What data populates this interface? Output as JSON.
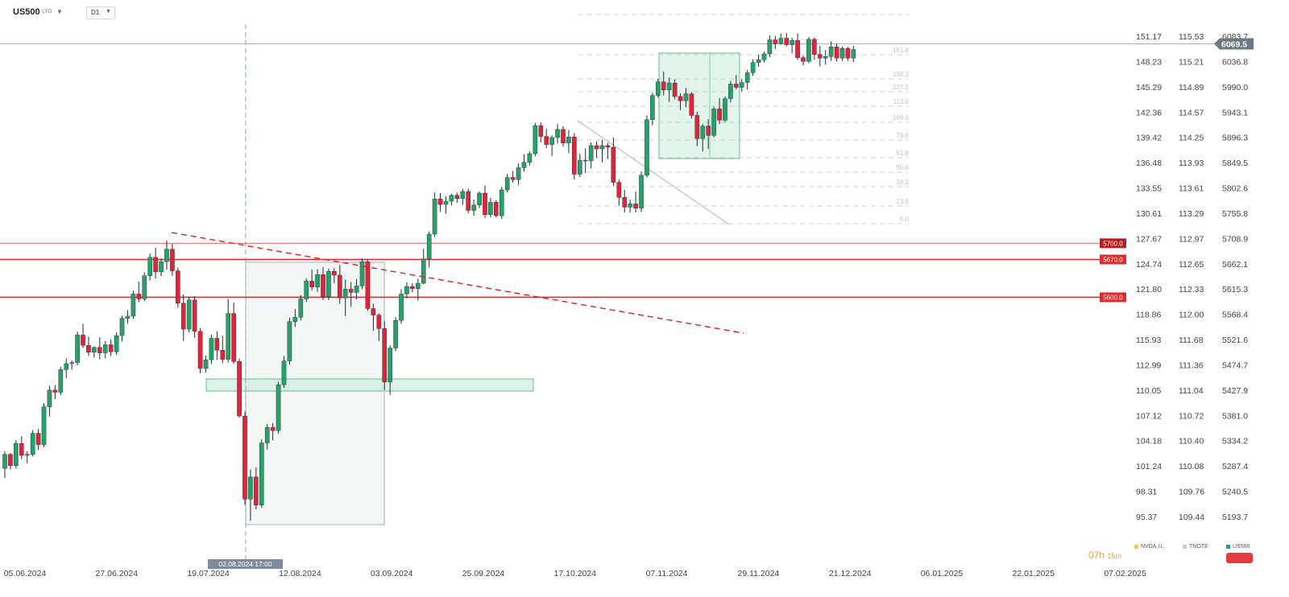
{
  "header": {
    "symbol": "US500",
    "symbol_type": "CFD",
    "timeframe": "D1"
  },
  "colors": {
    "up": "#26a269",
    "down": "#e0243a",
    "grid": "#d0d0d0",
    "level": "#e32a2a",
    "zone_green": "#cfeee0"
  },
  "icons": [
    "chevron-down-icon"
  ],
  "chart_data": {
    "type": "candlestick",
    "x_axis": {
      "type": "date",
      "tick_labels": [
        "05.06.2024",
        "27.06.2024",
        "19.07.2024",
        "12.08.2024",
        "03.09.2024",
        "25.09.2024",
        "17.10.2024",
        "07.11.2024",
        "29.11.2024",
        "21.12.2024",
        "06.01.2025",
        "22.01.2025",
        "07.02.2025"
      ],
      "crosshair_label": "02.08.2024 17:00"
    },
    "y_axes": {
      "nvda_ticks": [
        151.17,
        148.23,
        145.29,
        142.36,
        139.42,
        136.48,
        133.55,
        130.61,
        127.67,
        124.74,
        121.8,
        118.86,
        115.93,
        112.99,
        110.05,
        107.12,
        104.18,
        101.24,
        98.31,
        95.37
      ],
      "tnote_ticks": [
        115.53,
        115.21,
        114.89,
        114.57,
        114.25,
        113.93,
        113.61,
        113.29,
        112.97,
        112.65,
        112.33,
        112.0,
        111.68,
        111.36,
        111.04,
        110.72,
        110.4,
        110.08,
        109.76,
        109.44
      ],
      "us500_ticks": [
        6083.7,
        6036.8,
        5990.0,
        5943.1,
        5896.3,
        5849.5,
        5802.6,
        5755.8,
        5708.9,
        5662.1,
        5615.3,
        5568.4,
        5521.6,
        5474.7,
        5427.9,
        5381.0,
        5334.2,
        5287.4,
        5240.5,
        5193.7
      ],
      "us500_range": [
        5193.7,
        6083.7
      ],
      "last_price": "6069.5"
    },
    "levels": [
      {
        "value": 5700.0,
        "label": "5700.0"
      },
      {
        "value": 5670.0,
        "label": "5670.0"
      },
      {
        "value": 5600.0,
        "label": "5600.0"
      }
    ],
    "fibonacci": {
      "levels": [
        "161.8",
        "138.2",
        "127.2",
        "113.0",
        "100.0",
        "78.6",
        "61.8",
        "50.0",
        "38.2",
        "23.6",
        "0.0"
      ],
      "price_high": 6084,
      "price_low": 5751
    },
    "candles": [
      [
        5283,
        5315,
        5265,
        5309
      ],
      [
        5309,
        5311,
        5281,
        5288
      ],
      [
        5288,
        5335,
        5283,
        5329
      ],
      [
        5329,
        5342,
        5300,
        5307
      ],
      [
        5307,
        5315,
        5292,
        5309
      ],
      [
        5309,
        5354,
        5305,
        5348
      ],
      [
        5348,
        5356,
        5317,
        5327
      ],
      [
        5327,
        5404,
        5322,
        5397
      ],
      [
        5397,
        5436,
        5379,
        5428
      ],
      [
        5428,
        5437,
        5411,
        5424
      ],
      [
        5424,
        5471,
        5419,
        5466
      ],
      [
        5466,
        5487,
        5450,
        5477
      ],
      [
        5477,
        5483,
        5466,
        5479
      ],
      [
        5479,
        5536,
        5474,
        5530
      ],
      [
        5530,
        5551,
        5506,
        5511
      ],
      [
        5511,
        5527,
        5491,
        5498
      ],
      [
        5498,
        5509,
        5488,
        5507
      ],
      [
        5507,
        5526,
        5485,
        5497
      ],
      [
        5497,
        5519,
        5487,
        5512
      ],
      [
        5512,
        5522,
        5491,
        5499
      ],
      [
        5499,
        5535,
        5493,
        5529
      ],
      [
        5529,
        5566,
        5518,
        5561
      ],
      [
        5561,
        5576,
        5551,
        5565
      ],
      [
        5565,
        5612,
        5560,
        5606
      ],
      [
        5606,
        5629,
        5591,
        5597
      ],
      [
        5597,
        5646,
        5593,
        5640
      ],
      [
        5640,
        5681,
        5631,
        5674
      ],
      [
        5674,
        5692,
        5635,
        5647
      ],
      [
        5647,
        5672,
        5639,
        5666
      ],
      [
        5666,
        5705,
        5651,
        5689
      ],
      [
        5689,
        5699,
        5640,
        5649
      ],
      [
        5649,
        5655,
        5581,
        5589
      ],
      [
        5589,
        5605,
        5519,
        5541
      ],
      [
        5541,
        5601,
        5535,
        5595
      ],
      [
        5595,
        5602,
        5525,
        5537
      ],
      [
        5537,
        5543,
        5459,
        5468
      ],
      [
        5468,
        5492,
        5461,
        5484
      ],
      [
        5484,
        5531,
        5476,
        5524
      ],
      [
        5524,
        5537,
        5484,
        5502
      ],
      [
        5502,
        5529,
        5478,
        5485
      ],
      [
        5485,
        5597,
        5479,
        5570
      ],
      [
        5570,
        5590,
        5477,
        5481
      ],
      [
        5481,
        5486,
        5377,
        5380
      ],
      [
        5380,
        5388,
        5215,
        5226
      ],
      [
        5226,
        5281,
        5186,
        5267
      ],
      [
        5267,
        5285,
        5207,
        5215
      ],
      [
        5215,
        5337,
        5210,
        5330
      ],
      [
        5330,
        5365,
        5318,
        5359
      ],
      [
        5359,
        5367,
        5335,
        5353
      ],
      [
        5353,
        5443,
        5347,
        5438
      ],
      [
        5438,
        5491,
        5432,
        5482
      ],
      [
        5482,
        5562,
        5475,
        5555
      ],
      [
        5555,
        5578,
        5545,
        5563
      ],
      [
        5563,
        5604,
        5557,
        5597
      ],
      [
        5597,
        5635,
        5591,
        5630
      ],
      [
        5630,
        5651,
        5613,
        5619
      ],
      [
        5619,
        5652,
        5610,
        5642
      ],
      [
        5642,
        5656,
        5595,
        5601
      ],
      [
        5601,
        5653,
        5595,
        5648
      ],
      [
        5648,
        5654,
        5626,
        5641
      ],
      [
        5641,
        5660,
        5588,
        5599
      ],
      [
        5599,
        5633,
        5565,
        5615
      ],
      [
        5615,
        5628,
        5582,
        5609
      ],
      [
        5609,
        5634,
        5596,
        5621
      ],
      [
        5621,
        5672,
        5615,
        5666
      ],
      [
        5666,
        5671,
        5575,
        5579
      ],
      [
        5579,
        5588,
        5538,
        5567
      ],
      [
        5567,
        5570,
        5519,
        5542
      ],
      [
        5542,
        5556,
        5428,
        5443
      ],
      [
        5443,
        5511,
        5419,
        5506
      ],
      [
        5506,
        5563,
        5500,
        5557
      ],
      [
        5557,
        5615,
        5551,
        5606
      ],
      [
        5606,
        5628,
        5598,
        5620
      ],
      [
        5620,
        5626,
        5609,
        5616
      ],
      [
        5616,
        5634,
        5594,
        5626
      ],
      [
        5626,
        5690,
        5624,
        5671
      ],
      [
        5671,
        5722,
        5655,
        5717
      ],
      [
        5717,
        5794,
        5712,
        5782
      ],
      [
        5782,
        5793,
        5758,
        5772
      ],
      [
        5772,
        5787,
        5755,
        5778
      ],
      [
        5778,
        5792,
        5770,
        5789
      ],
      [
        5789,
        5794,
        5775,
        5783
      ],
      [
        5783,
        5801,
        5771,
        5796
      ],
      [
        5796,
        5801,
        5756,
        5761
      ],
      [
        5761,
        5781,
        5751,
        5771
      ],
      [
        5771,
        5796,
        5765,
        5793
      ],
      [
        5793,
        5807,
        5747,
        5753
      ],
      [
        5753,
        5784,
        5748,
        5776
      ],
      [
        5776,
        5780,
        5748,
        5751
      ],
      [
        5751,
        5805,
        5745,
        5799
      ],
      [
        5799,
        5829,
        5794,
        5822
      ],
      [
        5822,
        5834,
        5812,
        5818
      ],
      [
        5818,
        5848,
        5808,
        5840
      ],
      [
        5840,
        5865,
        5833,
        5850
      ],
      [
        5850,
        5870,
        5844,
        5866
      ],
      [
        5866,
        5923,
        5861,
        5918
      ],
      [
        5918,
        5924,
        5887,
        5898
      ],
      [
        5898,
        5912,
        5876,
        5883
      ],
      [
        5883,
        5900,
        5862,
        5896
      ],
      [
        5896,
        5921,
        5885,
        5911
      ],
      [
        5911,
        5917,
        5879,
        5886
      ],
      [
        5886,
        5910,
        5867,
        5897
      ],
      [
        5897,
        5904,
        5818,
        5828
      ],
      [
        5828,
        5866,
        5823,
        5854
      ],
      [
        5854,
        5876,
        5830,
        5853
      ],
      [
        5853,
        5887,
        5839,
        5881
      ],
      [
        5881,
        5889,
        5858,
        5875
      ],
      [
        5875,
        5892,
        5850,
        5881
      ],
      [
        5881,
        5886,
        5856,
        5878
      ],
      [
        5878,
        5896,
        5806,
        5813
      ],
      [
        5813,
        5818,
        5770,
        5785
      ],
      [
        5785,
        5799,
        5757,
        5767
      ],
      [
        5767,
        5781,
        5757,
        5773
      ],
      [
        5773,
        5796,
        5757,
        5765
      ],
      [
        5765,
        5833,
        5758,
        5826
      ],
      [
        5826,
        5937,
        5822,
        5929
      ],
      [
        5929,
        5979,
        5919,
        5974
      ],
      [
        5974,
        6005,
        5970,
        5999
      ],
      [
        5999,
        6018,
        5974,
        5984
      ],
      [
        5984,
        6007,
        5962,
        5997
      ],
      [
        5997,
        6004,
        5967,
        5972
      ],
      [
        5972,
        5978,
        5947,
        5964
      ],
      [
        5964,
        5988,
        5952,
        5977
      ],
      [
        5977,
        5980,
        5931,
        5937
      ],
      [
        5937,
        5944,
        5880,
        5894
      ],
      [
        5894,
        5921,
        5870,
        5917
      ],
      [
        5917,
        5930,
        5875,
        5900
      ],
      [
        5900,
        5953,
        5896,
        5949
      ],
      [
        5949,
        5969,
        5921,
        5928
      ],
      [
        5928,
        5972,
        5924,
        5968
      ],
      [
        5968,
        6001,
        5961,
        5995
      ],
      [
        5995,
        6012,
        5985,
        5989
      ],
      [
        5989,
        6004,
        5981,
        5998
      ],
      [
        5998,
        6021,
        5985,
        6016
      ],
      [
        6016,
        6041,
        6010,
        6035
      ],
      [
        6035,
        6049,
        6027,
        6040
      ],
      [
        6040,
        6055,
        6035,
        6051
      ],
      [
        6051,
        6085,
        6045,
        6077
      ],
      [
        6077,
        6084,
        6060,
        6070
      ],
      [
        6070,
        6089,
        6068,
        6080
      ],
      [
        6080,
        6090,
        6065,
        6068
      ],
      [
        6068,
        6081,
        6052,
        6076
      ],
      [
        6076,
        6089,
        6040,
        6044
      ],
      [
        6044,
        6048,
        6030,
        6037
      ],
      [
        6037,
        6082,
        6034,
        6078
      ],
      [
        6078,
        6081,
        6040,
        6050
      ],
      [
        6050,
        6066,
        6028,
        6043
      ],
      [
        6043,
        6058,
        6031,
        6046
      ],
      [
        6046,
        6074,
        6038,
        6064
      ],
      [
        6064,
        6070,
        6037,
        6043
      ],
      [
        6043,
        6064,
        6038,
        6061
      ],
      [
        6061,
        6064,
        6038,
        6043
      ],
      [
        6043,
        6066,
        6036,
        6059
      ]
    ],
    "legend": [
      {
        "name": "NVDA.U..",
        "color": "#f2c94c"
      },
      {
        "name": "TNOTE",
        "color": "#cccccc"
      },
      {
        "name": "US500",
        "color": "#26a269"
      }
    ]
  },
  "footer": {
    "countdown_hours": "07h",
    "countdown_minutes": "15m"
  }
}
